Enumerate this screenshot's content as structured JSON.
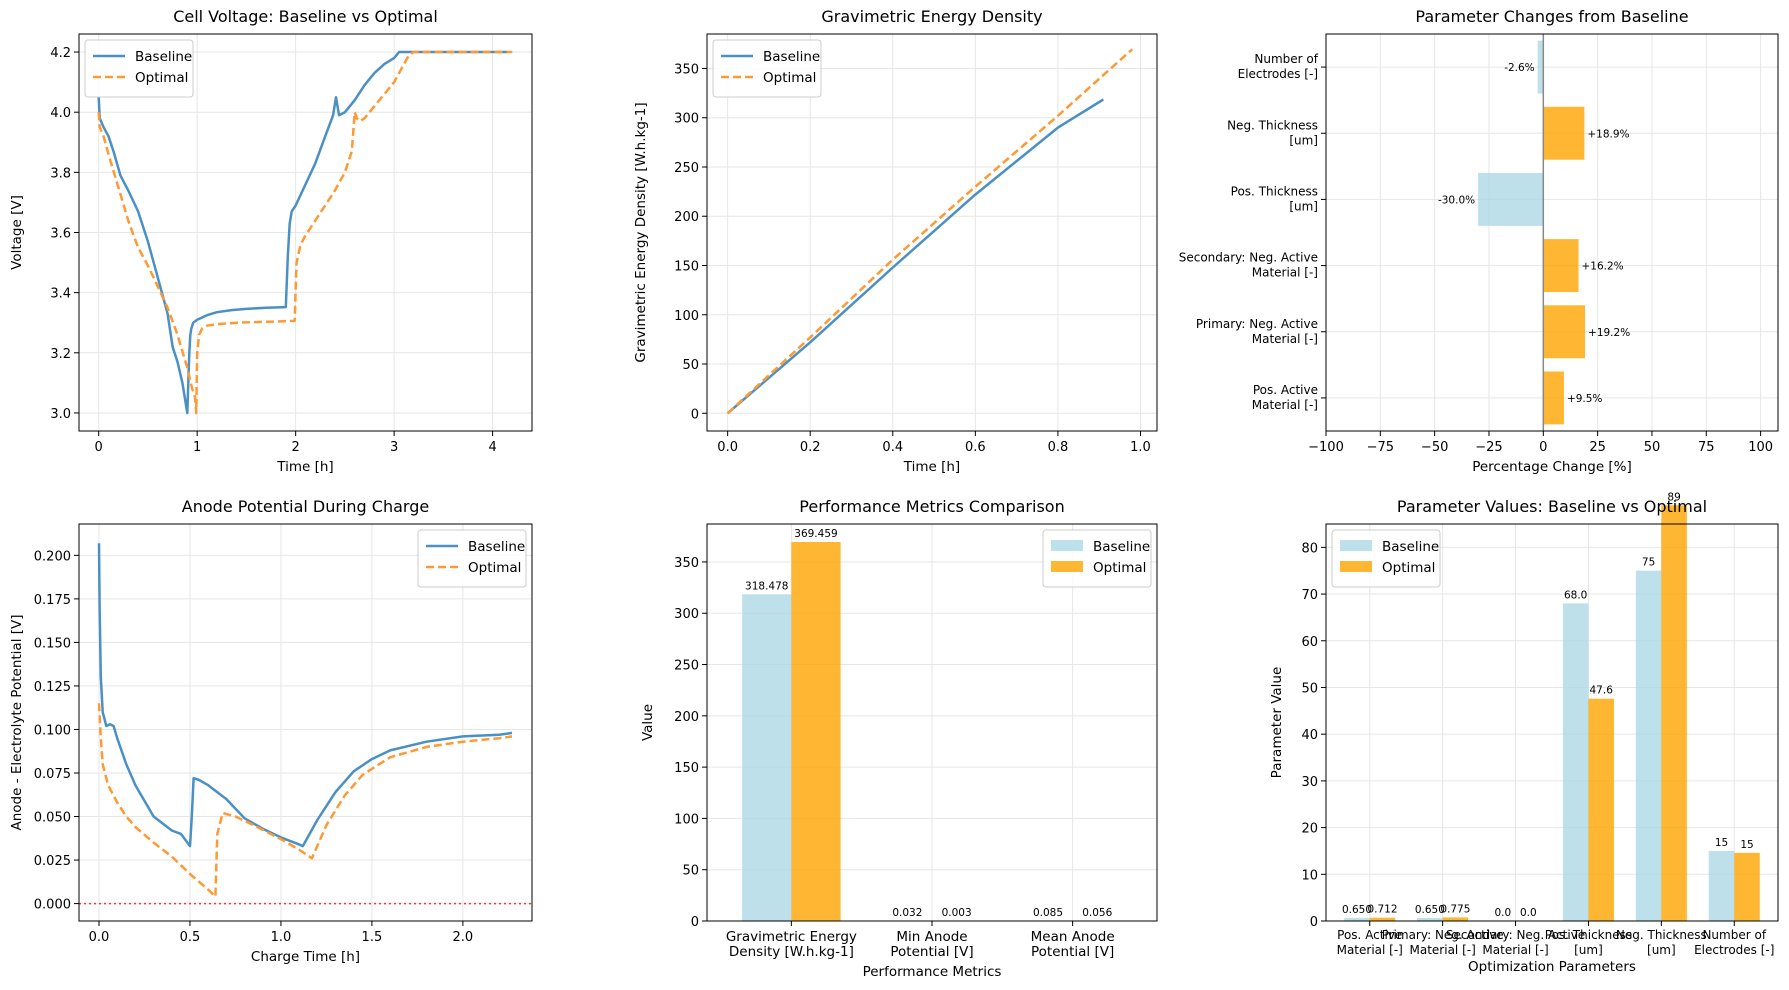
{
  "colors": {
    "baseline_line": "#4a90c4",
    "optimal_line": "#ff9933",
    "baseline_bar": "#add8e6",
    "optimal_bar": "#ffa500",
    "grid": "#e6e6e6",
    "zero_line": "#888888",
    "hline": "#ff3333"
  },
  "chart_data": [
    {
      "id": "cell_voltage",
      "type": "line",
      "title": "Cell Voltage: Baseline vs Optimal",
      "xlabel": "Time [h]",
      "ylabel": "Voltage [V]",
      "xlim": [
        -0.2,
        4.4
      ],
      "ylim": [
        2.94,
        4.26
      ],
      "xticks": [
        0,
        1,
        2,
        3,
        4
      ],
      "yticks": [
        3.0,
        3.2,
        3.4,
        3.6,
        3.8,
        4.0,
        4.2
      ],
      "ytick_decimals": 1,
      "legend": "top-left",
      "series": [
        {
          "name": "Baseline",
          "style": "solid",
          "x": [
            0,
            0.01,
            0.05,
            0.1,
            0.15,
            0.22,
            0.3,
            0.4,
            0.5,
            0.6,
            0.7,
            0.75,
            0.8,
            0.85,
            0.9,
            0.92,
            0.93,
            0.94,
            0.96,
            1.0,
            1.1,
            1.2,
            1.35,
            1.5,
            1.7,
            1.9,
            1.92,
            1.94,
            1.96,
            2.0,
            2.1,
            2.2,
            2.3,
            2.38,
            2.41,
            2.44,
            2.5,
            2.55,
            2.6,
            2.7,
            2.8,
            2.9,
            3.0,
            3.05,
            3.1,
            3.2,
            3.5,
            4.0,
            4.15
          ],
          "y": [
            4.05,
            3.98,
            3.95,
            3.92,
            3.87,
            3.79,
            3.74,
            3.67,
            3.57,
            3.45,
            3.33,
            3.22,
            3.17,
            3.1,
            3.0,
            3.2,
            3.26,
            3.28,
            3.3,
            3.31,
            3.325,
            3.335,
            3.342,
            3.346,
            3.35,
            3.352,
            3.52,
            3.63,
            3.67,
            3.69,
            3.76,
            3.83,
            3.92,
            3.99,
            4.05,
            3.99,
            4.0,
            4.02,
            4.04,
            4.09,
            4.13,
            4.16,
            4.18,
            4.2,
            4.2,
            4.2,
            4.2,
            4.2,
            4.2
          ]
        },
        {
          "name": "Optimal",
          "style": "dashed",
          "x": [
            0,
            0.01,
            0.05,
            0.1,
            0.2,
            0.3,
            0.4,
            0.5,
            0.6,
            0.7,
            0.8,
            0.9,
            0.95,
            0.98,
            0.99,
            1.0,
            1.02,
            1.05,
            1.1,
            1.2,
            1.4,
            1.6,
            1.8,
            1.99,
            2.0,
            2.01,
            2.05,
            2.1,
            2.2,
            2.3,
            2.4,
            2.5,
            2.57,
            2.6,
            2.62,
            2.65,
            2.7,
            2.8,
            2.9,
            3.0,
            3.1,
            3.15,
            3.2,
            3.5,
            4.0,
            4.2
          ],
          "y": [
            4.0,
            3.95,
            3.92,
            3.86,
            3.75,
            3.64,
            3.55,
            3.49,
            3.42,
            3.35,
            3.26,
            3.15,
            3.08,
            3.05,
            3.0,
            3.2,
            3.26,
            3.28,
            3.29,
            3.295,
            3.3,
            3.302,
            3.304,
            3.306,
            3.42,
            3.5,
            3.56,
            3.59,
            3.64,
            3.69,
            3.74,
            3.8,
            3.87,
            4.0,
            3.98,
            3.97,
            3.98,
            4.02,
            4.06,
            4.1,
            4.16,
            4.19,
            4.2,
            4.2,
            4.2,
            4.2
          ]
        }
      ]
    },
    {
      "id": "energy_density",
      "type": "line",
      "title": "Gravimetric Energy Density",
      "xlabel": "Time [h]",
      "ylabel": "Gravimetric Energy Density [W.h.kg-1]",
      "xlim": [
        -0.05,
        1.04
      ],
      "ylim": [
        -18,
        385
      ],
      "xticks": [
        0.0,
        0.2,
        0.4,
        0.6,
        0.8,
        1.0
      ],
      "xtick_decimals": 1,
      "yticks": [
        0,
        50,
        100,
        150,
        200,
        250,
        300,
        350
      ],
      "legend": "top-left",
      "series": [
        {
          "name": "Baseline",
          "style": "solid",
          "x": [
            0,
            0.2,
            0.4,
            0.6,
            0.8,
            0.91
          ],
          "y": [
            0,
            72,
            148,
            222,
            290,
            318.478
          ]
        },
        {
          "name": "Optimal",
          "style": "dashed",
          "x": [
            0,
            0.2,
            0.4,
            0.6,
            0.8,
            0.98
          ],
          "y": [
            0,
            77,
            156,
            230,
            302,
            369.459
          ]
        }
      ]
    },
    {
      "id": "param_changes",
      "type": "bar",
      "orientation": "horizontal",
      "title": "Parameter Changes from Baseline",
      "xlabel": "Percentage Change [%]",
      "xlim": [
        -100,
        108
      ],
      "xticks": [
        -100,
        -75,
        -50,
        -25,
        0,
        25,
        50,
        75,
        100
      ],
      "categories": [
        [
          "Pos. Active",
          "Material [-]"
        ],
        [
          "Primary: Neg. Active",
          "Material [-]"
        ],
        [
          "Secondary: Neg. Active",
          "Material [-]"
        ],
        [
          "Pos. Thickness",
          "[um]"
        ],
        [
          "Neg. Thickness",
          "[um]"
        ],
        [
          "Number of",
          "Electrodes [-]"
        ]
      ],
      "values": [
        9.5,
        19.2,
        16.2,
        -30.0,
        18.9,
        -2.6
      ],
      "labels": [
        "+9.5%",
        "+19.2%",
        "+16.2%",
        "-30.0%",
        "+18.9%",
        "-2.6%"
      ]
    },
    {
      "id": "anode_potential",
      "type": "line",
      "title": "Anode Potential During Charge",
      "xlabel": "Charge Time [h]",
      "ylabel": "Anode - Electrolyte Potential [V]",
      "xlim": [
        -0.11,
        2.38
      ],
      "ylim": [
        -0.01,
        0.218
      ],
      "xticks": [
        0.0,
        0.5,
        1.0,
        1.5,
        2.0
      ],
      "xtick_decimals": 1,
      "yticks": [
        0.0,
        0.025,
        0.05,
        0.075,
        0.1,
        0.125,
        0.15,
        0.175,
        0.2
      ],
      "ytick_decimals": 3,
      "hline": 0,
      "legend": "top-right",
      "series": [
        {
          "name": "Baseline",
          "style": "solid",
          "x": [
            0,
            0.003,
            0.01,
            0.02,
            0.04,
            0.06,
            0.08,
            0.1,
            0.15,
            0.2,
            0.3,
            0.4,
            0.45,
            0.5,
            0.51,
            0.52,
            0.55,
            0.6,
            0.7,
            0.8,
            0.9,
            1.0,
            1.1,
            1.12,
            1.2,
            1.3,
            1.4,
            1.5,
            1.6,
            1.8,
            2.0,
            2.2,
            2.27
          ],
          "y": [
            0.207,
            0.17,
            0.13,
            0.11,
            0.102,
            0.103,
            0.102,
            0.095,
            0.08,
            0.068,
            0.05,
            0.042,
            0.04,
            0.033,
            0.05,
            0.072,
            0.071,
            0.068,
            0.06,
            0.049,
            0.043,
            0.038,
            0.034,
            0.033,
            0.048,
            0.064,
            0.076,
            0.083,
            0.088,
            0.093,
            0.096,
            0.097,
            0.098
          ]
        },
        {
          "name": "Optimal",
          "style": "dashed",
          "x": [
            0,
            0.01,
            0.02,
            0.05,
            0.1,
            0.15,
            0.2,
            0.3,
            0.4,
            0.5,
            0.6,
            0.64,
            0.65,
            0.68,
            0.75,
            0.85,
            1.0,
            1.1,
            1.17,
            1.25,
            1.35,
            1.45,
            1.6,
            1.8,
            2.0,
            2.2,
            2.27
          ],
          "y": [
            0.115,
            0.095,
            0.08,
            0.068,
            0.058,
            0.05,
            0.044,
            0.035,
            0.027,
            0.017,
            0.008,
            0.004,
            0.04,
            0.052,
            0.05,
            0.045,
            0.037,
            0.031,
            0.026,
            0.045,
            0.062,
            0.074,
            0.084,
            0.09,
            0.093,
            0.095,
            0.096
          ]
        }
      ]
    },
    {
      "id": "performance_metrics",
      "type": "bar",
      "title": "Performance Metrics Comparison",
      "xlabel": "Performance Metrics",
      "ylabel": "Value",
      "ylim": [
        0,
        387
      ],
      "yticks": [
        0,
        50,
        100,
        150,
        200,
        250,
        300,
        350
      ],
      "legend": "top-right",
      "categories": [
        [
          "Gravimetric Energy",
          "Density [W.h.kg-1]"
        ],
        [
          "Min Anode",
          "Potential [V]"
        ],
        [
          "Mean Anode",
          "Potential [V]"
        ]
      ],
      "series": [
        {
          "name": "Baseline",
          "values": [
            318.478,
            0.032,
            0.085
          ],
          "labels": [
            "318.478",
            "0.032",
            "0.085"
          ]
        },
        {
          "name": "Optimal",
          "values": [
            369.459,
            0.003,
            0.056
          ],
          "labels": [
            "369.459",
            "0.003",
            "0.056"
          ]
        }
      ]
    },
    {
      "id": "parameter_values",
      "type": "bar",
      "title": "Parameter Values: Baseline vs Optimal",
      "xlabel": "Optimization Parameters",
      "ylabel": "Parameter Value",
      "ylim": [
        0,
        85
      ],
      "yticks": [
        0,
        10,
        20,
        30,
        40,
        50,
        60,
        70,
        80
      ],
      "legend": "top-left",
      "categories": [
        [
          "Pos. Active",
          "Material [-]"
        ],
        [
          "Primary: Neg. Active",
          "Material [-]"
        ],
        [
          "Secondary: Neg. Active",
          "Material [-]"
        ],
        [
          "Pos. Thickness",
          "[um]"
        ],
        [
          "Neg. Thickness",
          "[um]"
        ],
        [
          "Number of",
          "Electrodes [-]"
        ]
      ],
      "series": [
        {
          "name": "Baseline",
          "values": [
            0.65,
            0.65,
            0.0,
            68.0,
            75,
            15
          ],
          "labels": [
            "0.650",
            "0.650",
            "0.0",
            "68.0",
            "75",
            "15"
          ]
        },
        {
          "name": "Optimal",
          "values": [
            0.712,
            0.775,
            0.0,
            47.6,
            89,
            14.6
          ],
          "labels": [
            "0.712",
            "0.775",
            "0.0",
            "47.6",
            "89",
            "15"
          ]
        }
      ]
    }
  ]
}
